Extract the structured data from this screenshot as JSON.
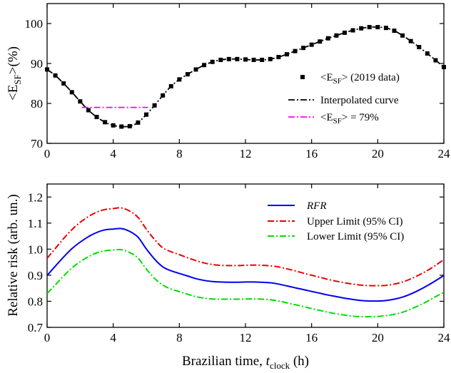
{
  "chart_data": [
    {
      "type": "scatter",
      "ylabel": "<E_SF>(%)",
      "xlim": [
        0,
        24
      ],
      "ylim": [
        70,
        105
      ],
      "xticks": [
        "0",
        "4",
        "8",
        "12",
        "16",
        "20",
        "24"
      ],
      "yticks": [
        "70",
        "80",
        "90",
        "100"
      ],
      "legend_position": "right",
      "legend": {
        "data_label": "<E_SF> (2019 data)",
        "interp_label": "Interpolated curve",
        "ref_label": "<E_SF> = 79%"
      },
      "colors": {
        "data": "#000000",
        "interp": "#000000",
        "ref": "#ff00ff"
      },
      "reference": {
        "y": 79,
        "x_range": [
          2.1,
          6.1
        ]
      },
      "series": [
        {
          "name": "<E_SF> (2019 data)",
          "x": [
            0,
            0.5,
            1,
            1.5,
            2,
            2.5,
            3,
            3.5,
            4,
            4.5,
            5,
            5.5,
            6,
            6.5,
            7,
            7.5,
            8,
            8.5,
            9,
            9.5,
            10,
            10.5,
            11,
            11.5,
            12,
            12.5,
            13,
            13.5,
            14,
            14.5,
            15,
            15.5,
            16,
            16.5,
            17,
            17.5,
            18,
            18.5,
            19,
            19.5,
            20,
            20.5,
            21,
            21.5,
            22,
            22.5,
            23,
            23.5,
            24
          ],
          "y": [
            88.5,
            87.0,
            85.0,
            82.8,
            80.5,
            78.3,
            76.6,
            75.3,
            74.5,
            74.2,
            74.3,
            75.2,
            77.2,
            79.5,
            82.0,
            84.3,
            86.0,
            87.3,
            88.5,
            89.6,
            90.4,
            90.9,
            91.1,
            91.1,
            91.0,
            90.9,
            90.9,
            91.1,
            91.6,
            92.3,
            93.1,
            93.9,
            94.7,
            95.5,
            96.3,
            97.0,
            97.7,
            98.3,
            98.8,
            99.1,
            99.1,
            98.9,
            98.2,
            97.0,
            95.6,
            94.1,
            92.5,
            90.8,
            89.1
          ]
        }
      ]
    },
    {
      "type": "line",
      "ylabel": "Relative risk (arb. un.)",
      "xlabel": "Brazilian time, t_clock (h)",
      "xlim": [
        0,
        24
      ],
      "ylim": [
        0.7,
        1.25
      ],
      "xticks": [
        "0",
        "4",
        "8",
        "12",
        "16",
        "20",
        "24"
      ],
      "yticks": [
        "0.7",
        "0.8",
        "0.9",
        "1.0",
        "1.1",
        "1.2"
      ],
      "legend_position": "top-right",
      "x": [
        0,
        0.5,
        1,
        1.5,
        2,
        2.5,
        3,
        3.5,
        4,
        4.5,
        5,
        5.5,
        6,
        6.5,
        7,
        7.5,
        8,
        8.5,
        9,
        9.5,
        10,
        10.5,
        11,
        11.5,
        12,
        12.5,
        13,
        13.5,
        14,
        14.5,
        15,
        15.5,
        16,
        16.5,
        17,
        17.5,
        18,
        18.5,
        19,
        19.5,
        20,
        20.5,
        21,
        21.5,
        22,
        22.5,
        23,
        23.5,
        24
      ],
      "series": [
        {
          "name": "RFR",
          "color": "#0000ee",
          "dash": "solid",
          "values": [
            0.899,
            0.935,
            0.97,
            1.002,
            1.027,
            1.048,
            1.064,
            1.074,
            1.077,
            1.079,
            1.068,
            1.046,
            1.001,
            0.962,
            0.932,
            0.917,
            0.907,
            0.897,
            0.887,
            0.88,
            0.876,
            0.874,
            0.873,
            0.873,
            0.874,
            0.874,
            0.873,
            0.871,
            0.866,
            0.859,
            0.852,
            0.845,
            0.838,
            0.831,
            0.824,
            0.818,
            0.812,
            0.807,
            0.803,
            0.801,
            0.801,
            0.803,
            0.808,
            0.816,
            0.828,
            0.843,
            0.86,
            0.879,
            0.899
          ]
        },
        {
          "name": "Upper Limit (95% CI)",
          "color": "#ee0000",
          "dash": "dashdot",
          "values": [
            0.965,
            1.003,
            1.041,
            1.075,
            1.103,
            1.125,
            1.142,
            1.152,
            1.156,
            1.158,
            1.146,
            1.122,
            1.077,
            1.037,
            1.005,
            0.99,
            0.979,
            0.967,
            0.956,
            0.947,
            0.941,
            0.938,
            0.937,
            0.937,
            0.938,
            0.939,
            0.938,
            0.936,
            0.932,
            0.925,
            0.917,
            0.908,
            0.9,
            0.892,
            0.884,
            0.877,
            0.871,
            0.866,
            0.862,
            0.86,
            0.86,
            0.861,
            0.866,
            0.874,
            0.886,
            0.901,
            0.918,
            0.938,
            0.96
          ]
        },
        {
          "name": "Lower Limit (95% CI)",
          "color": "#00dd00",
          "dash": "dashdot",
          "values": [
            0.83,
            0.863,
            0.897,
            0.928,
            0.952,
            0.971,
            0.986,
            0.994,
            0.997,
            0.998,
            0.987,
            0.966,
            0.924,
            0.888,
            0.862,
            0.847,
            0.837,
            0.827,
            0.818,
            0.812,
            0.809,
            0.808,
            0.808,
            0.808,
            0.809,
            0.809,
            0.808,
            0.806,
            0.801,
            0.794,
            0.787,
            0.78,
            0.772,
            0.765,
            0.758,
            0.752,
            0.747,
            0.743,
            0.741,
            0.741,
            0.742,
            0.745,
            0.75,
            0.758,
            0.77,
            0.784,
            0.8,
            0.818,
            0.834
          ]
        }
      ]
    }
  ]
}
